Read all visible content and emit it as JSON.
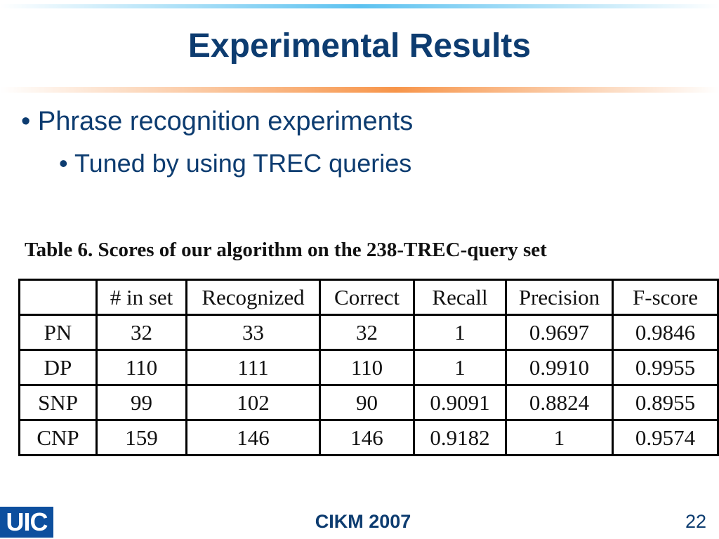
{
  "header": {
    "title": "Experimental Results"
  },
  "bullets": [
    {
      "text": "Phrase recognition experiments",
      "level": 1
    },
    {
      "text": "Tuned by using TREC queries",
      "level": 2
    }
  ],
  "table": {
    "caption": "Table 6. Scores of our algorithm on the 238-TREC-query set",
    "columns": [
      "",
      "# in set",
      "Recognized",
      "Correct",
      "Recall",
      "Precision",
      "F-score"
    ],
    "rows": [
      [
        "PN",
        "32",
        "33",
        "32",
        "1",
        "0.9697",
        "0.9846"
      ],
      [
        "DP",
        "110",
        "111",
        "110",
        "1",
        "0.9910",
        "0.9955"
      ],
      [
        "SNP",
        "99",
        "102",
        "90",
        "0.9091",
        "0.8824",
        "0.8955"
      ],
      [
        "CNP",
        "159",
        "146",
        "146",
        "0.9182",
        "1",
        "0.9574"
      ]
    ]
  },
  "footer": {
    "logo": "UIC",
    "conference": "CIKM 2007",
    "page": "22"
  }
}
